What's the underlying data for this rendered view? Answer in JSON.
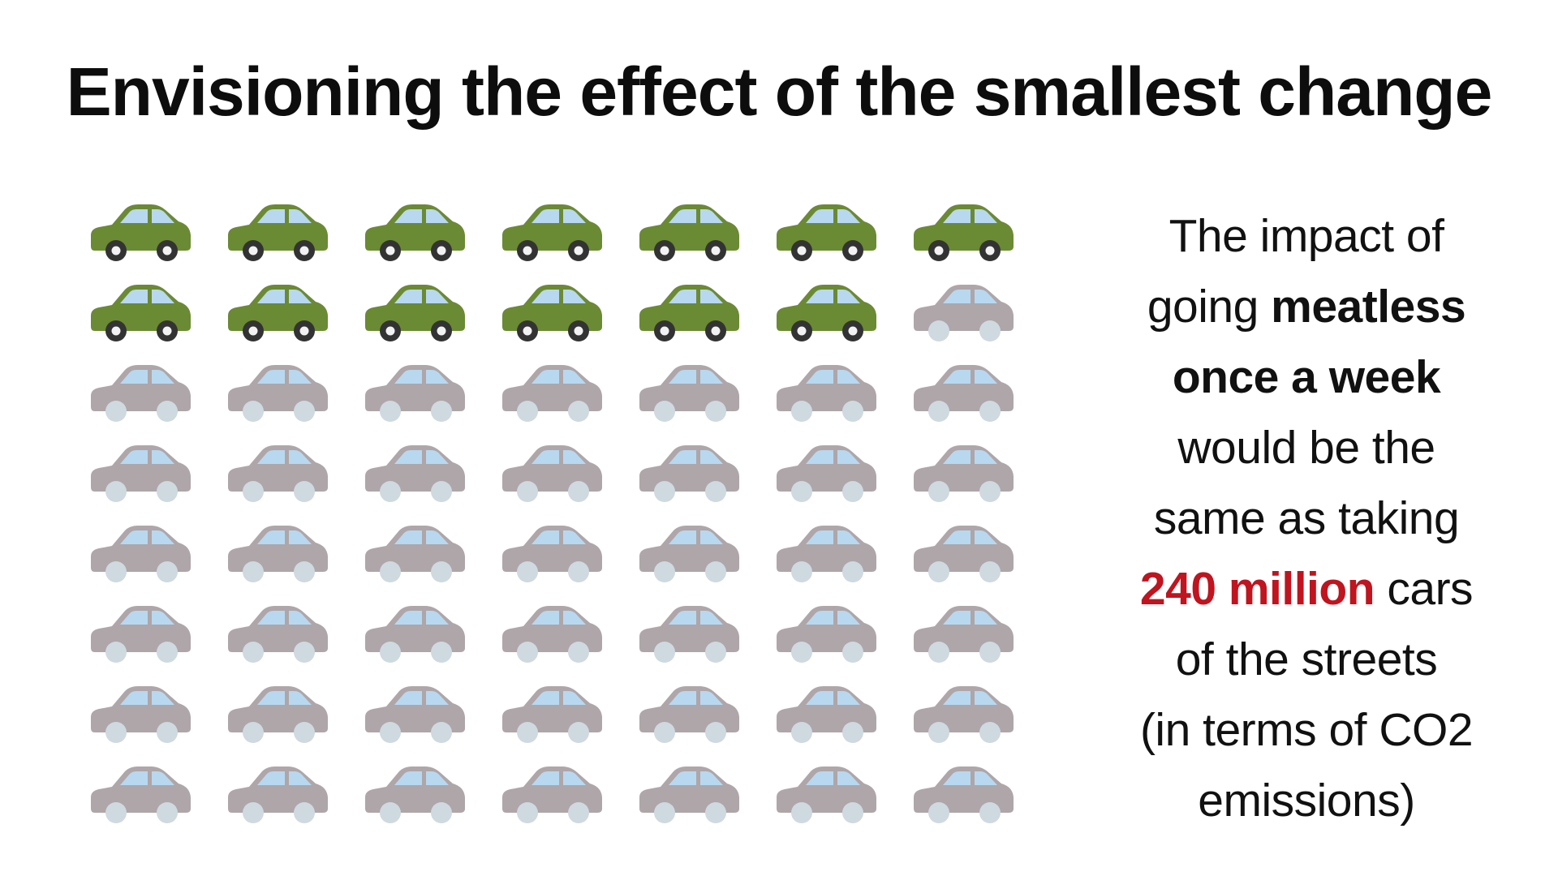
{
  "title": "Envisioning the effect of the smallest change",
  "pictogram": {
    "rows": 8,
    "columns": 7,
    "highlighted_count": 13,
    "total_count": 56,
    "highlight_colors": {
      "body": "#6b8a34",
      "window": "#b8d8f0",
      "wheel": "#333333",
      "hub": "#f2f2f2"
    },
    "muted_colors": {
      "body": "#aea6a8",
      "window": "#b8d8f0",
      "wheel": "#cfd9e0",
      "hub": "#cfd9e0"
    },
    "icon": "car-icon"
  },
  "caption": {
    "line1": "The impact of",
    "line2_a": "going ",
    "line2_b": "meatless",
    "line3": "once a week",
    "line4": "would be the",
    "line5": "same as taking",
    "line6_a": "240 million",
    "line6_b": " cars",
    "line7": "of the streets",
    "line8": "(in terms of CO2",
    "line9": "emissions)",
    "accent_color": "#c0141f"
  }
}
